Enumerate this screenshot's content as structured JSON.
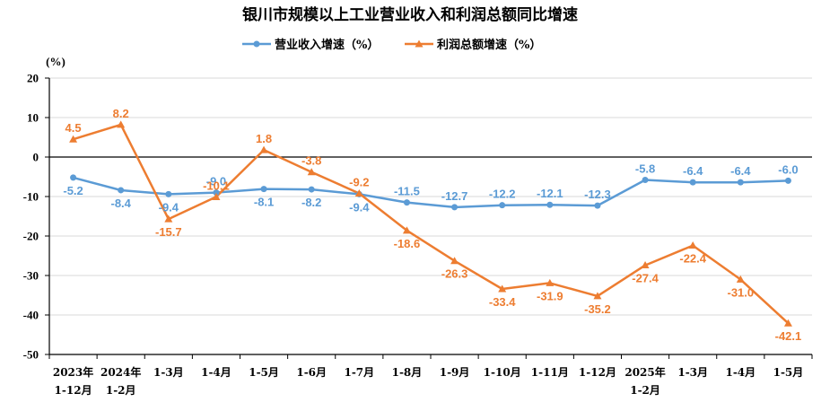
{
  "chart_data": {
    "type": "line",
    "title": "银川市规模以上工业营业收入和利润总额同比增速",
    "ylabel": "(%)",
    "ylim": [
      -50,
      20
    ],
    "yticks": [
      20,
      10,
      0,
      -10,
      -20,
      -30,
      -40,
      -50
    ],
    "grid": "horizontal",
    "legend_position": "top-center",
    "categories": [
      [
        "2023年",
        "1-12月"
      ],
      [
        "2024年",
        "1-2月"
      ],
      [
        "1-3月"
      ],
      [
        "1-4月"
      ],
      [
        "1-5月"
      ],
      [
        "1-6月"
      ],
      [
        "1-7月"
      ],
      [
        "1-8月"
      ],
      [
        "1-9月"
      ],
      [
        "1-10月"
      ],
      [
        "1-11月"
      ],
      [
        "1-12月"
      ],
      [
        "2025年",
        "1-2月"
      ],
      [
        "1-3月"
      ],
      [
        "1-4月"
      ],
      [
        "1-5月"
      ]
    ],
    "series": [
      {
        "name": "营业收入增速（%）",
        "color": "#5B9BD5",
        "marker": "circle",
        "values": [
          -5.2,
          -8.4,
          -9.4,
          -9.0,
          -8.1,
          -8.2,
          -9.4,
          -11.5,
          -12.7,
          -12.2,
          -12.1,
          -12.3,
          -5.8,
          -6.4,
          -6.4,
          -6.0
        ],
        "labels": [
          "-5.2",
          "-8.4",
          "-9.4",
          "-9.0",
          "-8.1",
          "-8.2",
          "-9.4",
          "-11.5",
          "-12.7",
          "-12.2",
          "-12.1",
          "-12.3",
          "-5.8",
          "-6.4",
          "-6.4",
          "-6.0"
        ]
      },
      {
        "name": "利润总额增速（%）",
        "color": "#ED7D31",
        "marker": "triangle",
        "values": [
          4.5,
          8.2,
          -15.7,
          -10.1,
          1.8,
          -3.8,
          -9.2,
          -18.6,
          -26.3,
          -33.4,
          -31.9,
          -35.2,
          -27.4,
          -22.4,
          -31.0,
          -42.1
        ],
        "labels": [
          "4.5",
          "8.2",
          "-15.7",
          "-10.1",
          "1.8",
          "-3.8",
          "-9.2",
          "-18.6",
          "-26.3",
          "-33.4",
          "-31.9",
          "-35.2",
          "-27.4",
          "-22.4",
          "-31.0",
          "-42.1"
        ]
      }
    ]
  }
}
